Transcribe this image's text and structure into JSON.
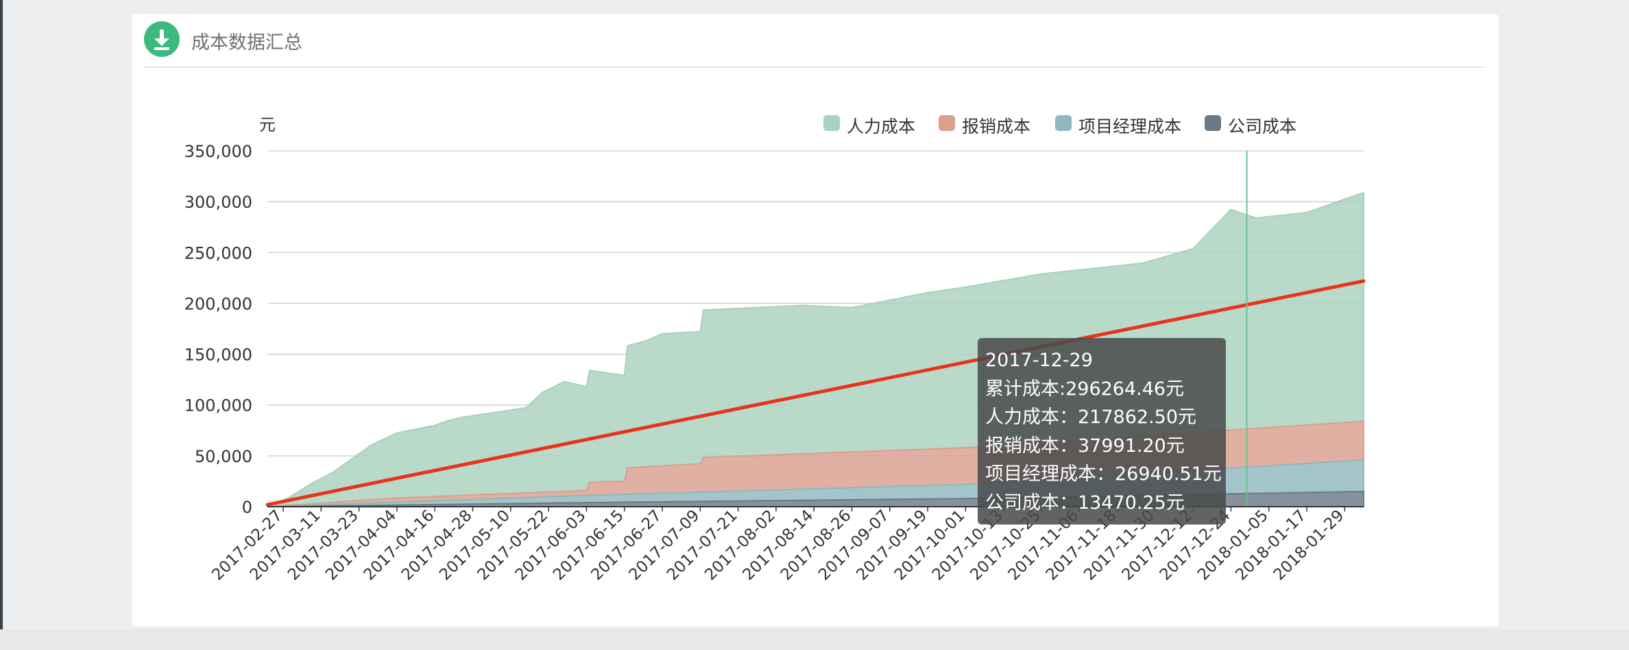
{
  "panel": {
    "title": "成本数据汇总",
    "icon": "download-icon"
  },
  "chart_data": {
    "type": "area",
    "y_unit": "元",
    "ylim": [
      0,
      350000
    ],
    "yticks": [
      0,
      50000,
      100000,
      150000,
      200000,
      250000,
      300000,
      350000
    ],
    "ytick_labels": [
      "0",
      "50,000",
      "100,000",
      "150,000",
      "200,000",
      "250,000",
      "300,000",
      "350,000"
    ],
    "xlim": [
      "2017-02-22",
      "2018-02-04"
    ],
    "x_tick_labels": [
      "2017-02-27",
      "2017-03-11",
      "2017-03-23",
      "2017-04-04",
      "2017-04-16",
      "2017-04-28",
      "2017-05-10",
      "2017-05-22",
      "2017-06-03",
      "2017-06-15",
      "2017-06-27",
      "2017-07-09",
      "2017-07-21",
      "2017-08-02",
      "2017-08-14",
      "2017-08-26",
      "2017-09-07",
      "2017-09-19",
      "2017-10-01",
      "2017-10-13",
      "2017-10-25",
      "2017-11-06",
      "2017-11-18",
      "2017-11-30",
      "2017-12-12",
      "2017-12-24",
      "2018-01-05",
      "2018-01-17",
      "2018-01-29"
    ],
    "stacked": true,
    "legend_position": "top-right",
    "series": [
      {
        "name": "公司成本",
        "color": "#6b7a85",
        "x": [
          "2017-02-22",
          "2017-06-03",
          "2017-10-01",
          "2018-02-04"
        ],
        "values": [
          0,
          4000,
          8000,
          15000
        ]
      },
      {
        "name": "项目经理成本",
        "color": "#8fb8bd",
        "x": [
          "2017-02-22",
          "2017-06-03",
          "2017-10-01",
          "2018-02-04"
        ],
        "values": [
          0,
          7000,
          14000,
          31000
        ]
      },
      {
        "name": "报销成本",
        "color": "#d9a08e",
        "x": [
          "2017-02-22",
          "2017-04-04",
          "2017-06-03",
          "2017-06-04",
          "2017-06-15",
          "2017-06-16",
          "2017-07-09",
          "2017-07-10",
          "2017-10-01",
          "2018-02-04"
        ],
        "values": [
          0,
          4000,
          5000,
          13000,
          13000,
          26000,
          28000,
          34000,
          36000,
          38000
        ]
      },
      {
        "name": "人力成本",
        "color": "#a9d1bd",
        "x": [
          "2017-02-22",
          "2017-03-01",
          "2017-03-08",
          "2017-03-15",
          "2017-03-20",
          "2017-03-27",
          "2017-04-04",
          "2017-04-16",
          "2017-04-20",
          "2017-04-25",
          "2017-05-01",
          "2017-05-10",
          "2017-05-15",
          "2017-05-20",
          "2017-05-27",
          "2017-06-03",
          "2017-06-04",
          "2017-06-15",
          "2017-06-16",
          "2017-06-22",
          "2017-06-27",
          "2017-07-09",
          "2017-07-10",
          "2017-08-10",
          "2017-08-26",
          "2017-09-07",
          "2017-09-19",
          "2017-10-01",
          "2017-10-25",
          "2017-11-26",
          "2017-12-12",
          "2017-12-24",
          "2018-01-01",
          "2018-01-17",
          "2018-02-04"
        ],
        "values": [
          0,
          8000,
          20000,
          30000,
          40000,
          54000,
          64000,
          70000,
          74000,
          77000,
          79000,
          82000,
          84000,
          98000,
          108000,
          102000,
          110000,
          104000,
          120000,
          124000,
          130000,
          130000,
          145000,
          146000,
          142000,
          148000,
          154000,
          158000,
          166000,
          170000,
          181000,
          217000,
          207000,
          209000,
          225000
        ]
      }
    ],
    "trend_line": {
      "color": "#e8341c",
      "x": [
        "2017-02-22",
        "2018-02-04"
      ],
      "values": [
        2000,
        222000
      ]
    },
    "crosshair_x": "2017-12-29",
    "tooltip": {
      "date": "2017-12-29",
      "lines": [
        "累计成本:296264.46元",
        "人力成本：217862.50元",
        "报销成本：37991.20元",
        "项目经理成本：26940.51元",
        "公司成本：13470.25元"
      ]
    }
  }
}
